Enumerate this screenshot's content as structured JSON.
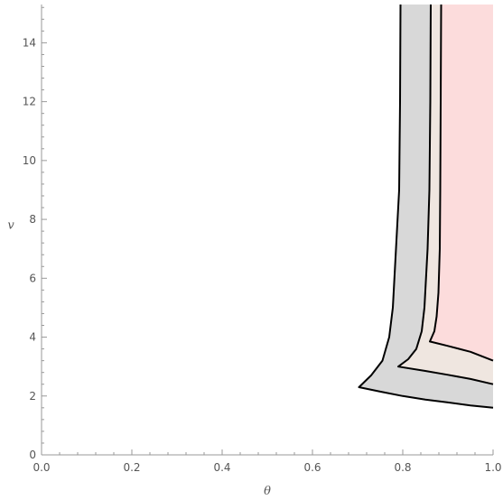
{
  "chart_data": {
    "type": "area",
    "title": "",
    "xlabel": "θ",
    "ylabel": "v",
    "xlim": [
      0,
      1
    ],
    "ylim": [
      0,
      15.3
    ],
    "grid": false,
    "legend": "none",
    "x_ticks": [
      {
        "value": 0.0,
        "label": "0.0"
      },
      {
        "value": 0.2,
        "label": "0.2"
      },
      {
        "value": 0.4,
        "label": "0.4"
      },
      {
        "value": 0.6,
        "label": "0.6"
      },
      {
        "value": 0.8,
        "label": "0.8"
      },
      {
        "value": 1.0,
        "label": "1.0"
      }
    ],
    "y_ticks": [
      {
        "value": 0,
        "label": "0"
      },
      {
        "value": 2,
        "label": "2"
      },
      {
        "value": 4,
        "label": "4"
      },
      {
        "value": 6,
        "label": "6"
      },
      {
        "value": 8,
        "label": "8"
      },
      {
        "value": 10,
        "label": "10"
      },
      {
        "value": 12,
        "label": "12"
      },
      {
        "value": 14,
        "label": "14"
      }
    ],
    "regions": [
      {
        "fill": "#d8d8d8",
        "boundary": [
          [
            0.795,
            15.3
          ],
          [
            0.794,
            12
          ],
          [
            0.792,
            9
          ],
          [
            0.785,
            7
          ],
          [
            0.778,
            5
          ],
          [
            0.77,
            4
          ],
          [
            0.755,
            3.2
          ],
          [
            0.73,
            2.7
          ],
          [
            0.703,
            2.3
          ],
          [
            0.75,
            2.15
          ],
          [
            0.8,
            2.0
          ],
          [
            0.85,
            1.88
          ],
          [
            0.9,
            1.78
          ],
          [
            0.95,
            1.68
          ],
          [
            1.0,
            1.6
          ],
          [
            1.0,
            15.3
          ]
        ]
      },
      {
        "fill": "#efe6e0",
        "boundary": [
          [
            0.862,
            15.3
          ],
          [
            0.861,
            12
          ],
          [
            0.859,
            9
          ],
          [
            0.855,
            7
          ],
          [
            0.848,
            5
          ],
          [
            0.842,
            4.2
          ],
          [
            0.83,
            3.6
          ],
          [
            0.812,
            3.25
          ],
          [
            0.79,
            3.0
          ],
          [
            0.85,
            2.85
          ],
          [
            0.9,
            2.72
          ],
          [
            0.95,
            2.58
          ],
          [
            1.0,
            2.4
          ],
          [
            1.0,
            15.3
          ]
        ]
      },
      {
        "fill": "#fcdcdc",
        "boundary": [
          [
            0.885,
            15.3
          ],
          [
            0.884,
            12
          ],
          [
            0.883,
            9
          ],
          [
            0.882,
            7
          ],
          [
            0.879,
            5.5
          ],
          [
            0.875,
            4.7
          ],
          [
            0.87,
            4.2
          ],
          [
            0.86,
            3.85
          ],
          [
            0.9,
            3.7
          ],
          [
            0.95,
            3.5
          ],
          [
            1.0,
            3.2
          ],
          [
            1.0,
            15.3
          ]
        ]
      }
    ]
  }
}
